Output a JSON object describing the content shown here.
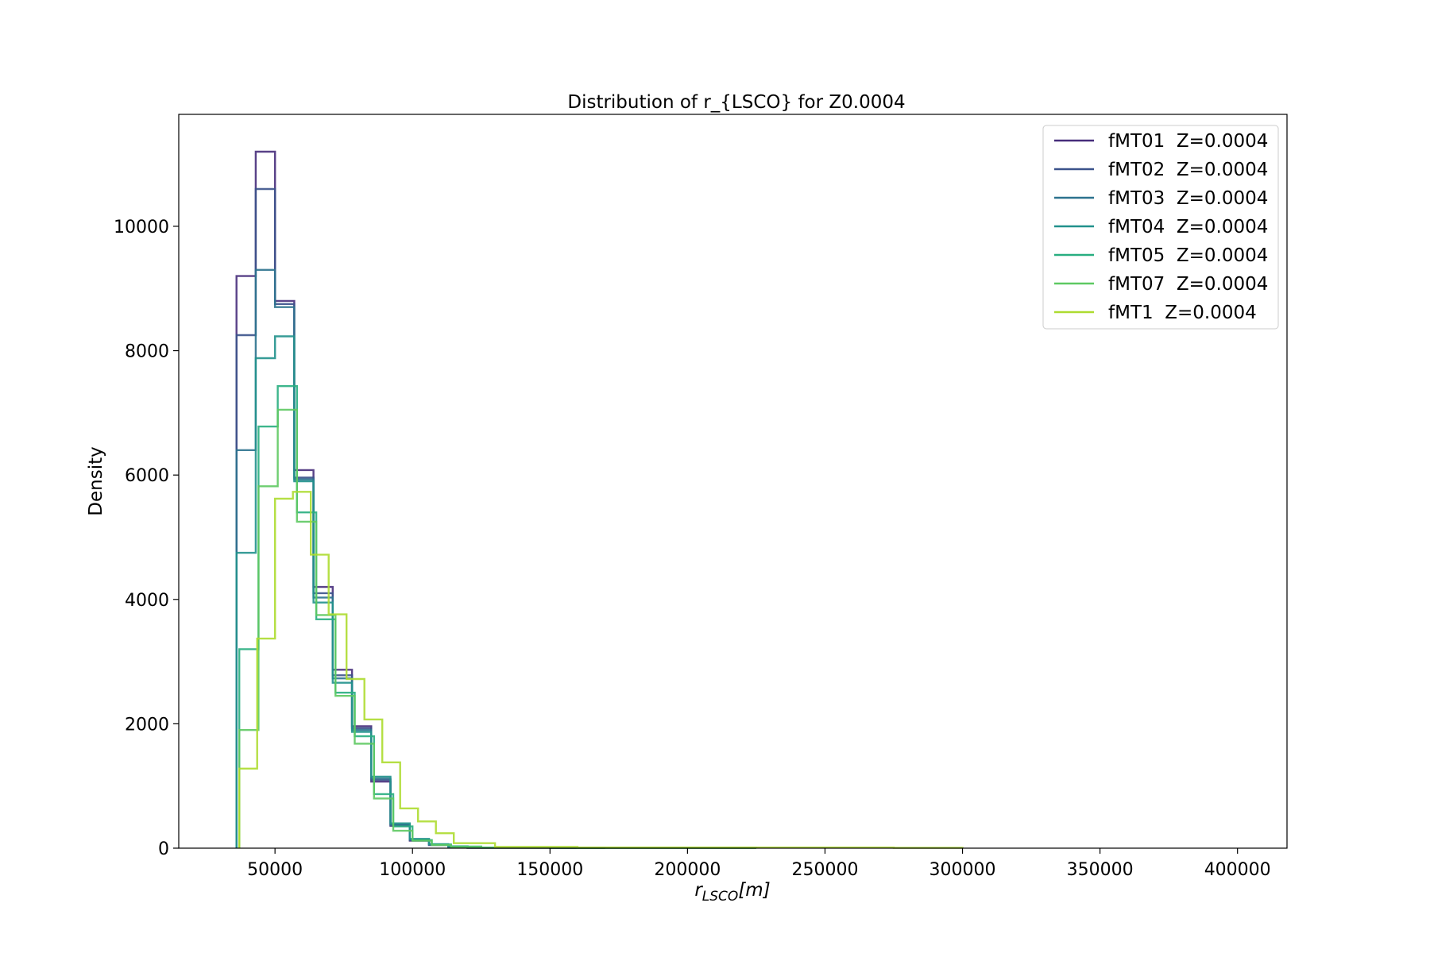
{
  "chart_data": {
    "type": "histogram",
    "title": "Distribution of r_{LSCO} for Z0.0004",
    "xlabel_main": "r",
    "xlabel_sub": "LSCO",
    "xlabel_tail": "[m]",
    "ylabel": "Density",
    "xlim": [
      15000,
      418000
    ],
    "ylim": [
      0,
      11800
    ],
    "xticks": [
      50000,
      100000,
      150000,
      200000,
      250000,
      300000,
      350000,
      400000
    ],
    "xtick_labels": [
      "50000",
      "100000",
      "150000",
      "200000",
      "250000",
      "300000",
      "350000",
      "400000"
    ],
    "yticks": [
      0,
      2000,
      4000,
      6000,
      8000,
      10000
    ],
    "ytick_labels": [
      "0",
      "2000",
      "4000",
      "6000",
      "8000",
      "10000"
    ],
    "legend_position": "top-right",
    "grid": false,
    "series": [
      {
        "name": "fMT01  Z=0.0004",
        "color": "#472d7b",
        "edges": [
          36000,
          43000,
          50000,
          57000,
          64000,
          71000,
          78000,
          85000,
          92000,
          99000,
          106000,
          113000,
          120000,
          150000,
          170000
        ],
        "values": [
          9200,
          11200,
          8800,
          6080,
          4200,
          2870,
          1960,
          1070,
          360,
          120,
          50,
          25,
          8,
          5
        ]
      },
      {
        "name": "fMT02  Z=0.0004",
        "color": "#3b528b",
        "edges": [
          36000,
          43000,
          50000,
          57000,
          64000,
          71000,
          78000,
          85000,
          92000,
          99000,
          106000,
          113000,
          120000,
          150000,
          170000
        ],
        "values": [
          8250,
          10600,
          8750,
          5960,
          4100,
          2780,
          1930,
          1100,
          370,
          130,
          55,
          25,
          8,
          5
        ]
      },
      {
        "name": "fMT03  Z=0.0004",
        "color": "#2c728e",
        "edges": [
          36000,
          43000,
          50000,
          57000,
          64000,
          71000,
          78000,
          85000,
          92000,
          99000,
          106000,
          113000,
          120000,
          150000,
          170000
        ],
        "values": [
          6400,
          9300,
          8700,
          5930,
          4030,
          2730,
          1900,
          1120,
          380,
          140,
          60,
          25,
          8,
          5
        ]
      },
      {
        "name": "fMT04  Z=0.0004",
        "color": "#21918c",
        "edges": [
          36000,
          43000,
          50000,
          57000,
          64000,
          71000,
          78000,
          85000,
          92000,
          99000,
          106000,
          113000,
          120000,
          150000,
          170000
        ],
        "values": [
          4750,
          7880,
          8230,
          5900,
          3950,
          2660,
          1870,
          1150,
          400,
          150,
          65,
          30,
          10,
          5
        ]
      },
      {
        "name": "fMT05  Z=0.0004",
        "color": "#28ae80",
        "edges": [
          37000,
          44000,
          51000,
          58000,
          65000,
          72000,
          79000,
          86000,
          93000,
          100000,
          107000,
          114000,
          125000,
          160000,
          225000
        ],
        "values": [
          3200,
          6780,
          7430,
          5400,
          3680,
          2500,
          1800,
          870,
          350,
          130,
          60,
          25,
          10,
          5
        ]
      },
      {
        "name": "fMT07  Z=0.0004",
        "color": "#5ec962",
        "edges": [
          37000,
          44000,
          51000,
          58000,
          65000,
          72000,
          79000,
          86000,
          93000,
          100000,
          107000,
          114000,
          125000,
          160000,
          225000
        ],
        "values": [
          1900,
          5820,
          7050,
          5250,
          3750,
          2450,
          1680,
          800,
          280,
          120,
          50,
          20,
          8,
          4
        ]
      },
      {
        "name": "fMT1  Z=0.0004",
        "color": "#addc30",
        "edges": [
          37000,
          43500,
          50000,
          56500,
          63000,
          69500,
          76000,
          82500,
          89000,
          95500,
          102000,
          108500,
          115000,
          130000,
          160000,
          275000,
          300000
        ],
        "values": [
          1280,
          3370,
          5620,
          5730,
          4720,
          3760,
          2720,
          2070,
          1380,
          640,
          430,
          240,
          80,
          20,
          10,
          5
        ]
      }
    ]
  }
}
